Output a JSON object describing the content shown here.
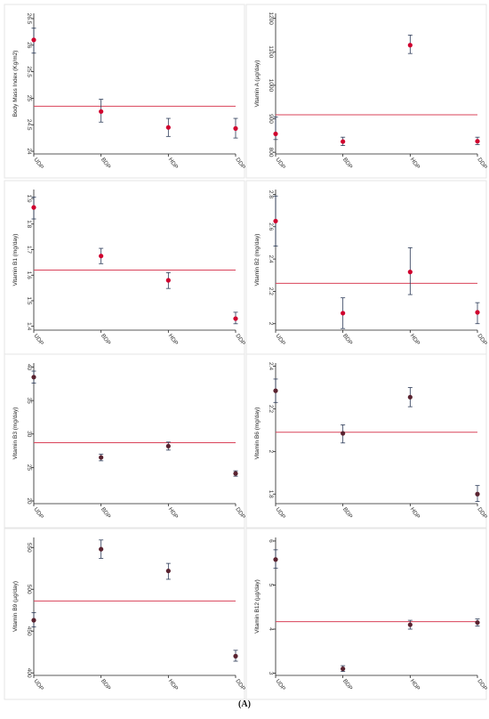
{
  "caption": "(A)",
  "colors": {
    "reference_line": "#d9435a",
    "marker": "#d0002e",
    "marker_dark": "#5a2330",
    "errorbar": "#2b3a57",
    "frame": "#e6e6e6",
    "axis": "#222222"
  },
  "chart_data": [
    {
      "type": "scatter",
      "ylabel": "Body Mass Index (Kg/m2)",
      "categories": [
        "UDP",
        "BDP",
        "HDP",
        "DDP"
      ],
      "values": [
        26.1,
        24.75,
        24.45,
        24.43
      ],
      "error_low": [
        25.85,
        24.55,
        24.28,
        24.25
      ],
      "error_high": [
        26.32,
        24.98,
        24.62,
        24.62
      ],
      "reference_line": 24.85,
      "yticks": [
        "24",
        "24.5",
        "25",
        "25.5",
        "26",
        "26.5"
      ],
      "ytick_values": [
        24,
        24.5,
        25,
        25.5,
        26,
        26.5
      ],
      "ylim": [
        23.95,
        26.6
      ],
      "marker": "bright"
    },
    {
      "type": "scatter",
      "ylabel": "Vitamin A (µg/day)",
      "categories": [
        "UDP",
        "BDP",
        "HDP",
        "DDP"
      ],
      "values": [
        855,
        832,
        1120,
        833
      ],
      "error_low": [
        838,
        820,
        1095,
        823
      ],
      "error_high": [
        905,
        845,
        1150,
        845
      ],
      "reference_line": 912,
      "yticks": [
        "800",
        "900",
        "1000",
        "1100",
        "1200"
      ],
      "ytick_values": [
        800,
        900,
        1000,
        1100,
        1200
      ],
      "ylim": [
        795,
        1215
      ],
      "marker": "bright"
    },
    {
      "type": "scatter",
      "ylabel": "Vitamin B1 (mg/day)",
      "categories": [
        "UDP",
        "BDP",
        "HDP",
        "DDP"
      ],
      "values": [
        1.865,
        1.675,
        1.58,
        1.43
      ],
      "error_low": [
        1.82,
        1.645,
        1.548,
        1.41
      ],
      "error_high": [
        1.905,
        1.705,
        1.61,
        1.455
      ],
      "reference_line": 1.62,
      "yticks": [
        "1.4",
        "1.5",
        "1.6",
        "1.7",
        "1.8",
        "1.9"
      ],
      "ytick_values": [
        1.4,
        1.5,
        1.6,
        1.7,
        1.8,
        1.9
      ],
      "ylim": [
        1.385,
        1.935
      ],
      "marker": "bright"
    },
    {
      "type": "scatter",
      "ylabel": "Vitamin B2 (mg/day)",
      "categories": [
        "UDP",
        "BDP",
        "HDP",
        "DDP"
      ],
      "values": [
        2.635,
        2.065,
        2.32,
        2.07
      ],
      "error_low": [
        2.48,
        1.97,
        2.18,
        2.0
      ],
      "error_high": [
        2.79,
        2.16,
        2.47,
        2.13
      ],
      "reference_line": 2.25,
      "yticks": [
        "2",
        "2.2",
        "2.4",
        "2.6",
        "2.8"
      ],
      "ytick_values": [
        2,
        2.2,
        2.4,
        2.6,
        2.8
      ],
      "ylim": [
        1.96,
        2.83
      ],
      "marker": "bright"
    },
    {
      "type": "scatter",
      "ylabel": "Vitamin B3 (mg/day)",
      "categories": [
        "UDP",
        "BDP",
        "HDP",
        "DDP"
      ],
      "values": [
        38.5,
        26.5,
        28.2,
        24.1
      ],
      "error_low": [
        37.6,
        26.0,
        27.6,
        23.7
      ],
      "error_high": [
        39.4,
        27.0,
        28.8,
        24.5
      ],
      "reference_line": 28.7,
      "yticks": [
        "20",
        "25",
        "30",
        "35",
        "40"
      ],
      "ytick_values": [
        20,
        25,
        30,
        35,
        40
      ],
      "ylim": [
        19.6,
        40.6
      ],
      "marker": "dark"
    },
    {
      "type": "scatter",
      "ylabel": "Vitamin B6 (mg/day)",
      "categories": [
        "UDP",
        "BDP",
        "HDP",
        "DDP"
      ],
      "values": [
        2.285,
        2.085,
        2.255,
        1.8
      ],
      "error_low": [
        2.23,
        2.04,
        2.21,
        1.765
      ],
      "error_high": [
        2.34,
        2.125,
        2.3,
        1.84
      ],
      "reference_line": 2.09,
      "yticks": [
        "1.8",
        "2",
        "2.2",
        "2.4"
      ],
      "ytick_values": [
        1.8,
        2.0,
        2.2,
        2.4
      ],
      "ylim": [
        1.755,
        2.415
      ],
      "marker": "dark"
    },
    {
      "type": "scatter",
      "ylabel": "Vitamin B9 (µg/day)",
      "categories": [
        "UDP",
        "BDP",
        "HDP",
        "DDP"
      ],
      "values": [
        463,
        548,
        522,
        420
      ],
      "error_low": [
        455,
        537,
        512,
        414
      ],
      "error_high": [
        472,
        559,
        531,
        427
      ],
      "reference_line": 486,
      "yticks": [
        "400",
        "450",
        "500",
        "550"
      ],
      "ytick_values": [
        400,
        450,
        500,
        550
      ],
      "ylim": [
        397,
        562
      ],
      "marker": "dark"
    },
    {
      "type": "scatter",
      "ylabel": "Vitamin B12 (µg/day)",
      "categories": [
        "UDP",
        "BDP",
        "HDP",
        "DDP"
      ],
      "values": [
        5.58,
        3.1,
        4.1,
        4.15
      ],
      "error_low": [
        5.38,
        3.04,
        4.0,
        4.07
      ],
      "error_high": [
        5.8,
        3.17,
        4.2,
        4.23
      ],
      "reference_line": 4.17,
      "yticks": [
        "3",
        "4",
        "5",
        "6"
      ],
      "ytick_values": [
        3,
        4,
        5,
        6
      ],
      "ylim": [
        2.95,
        6.08
      ],
      "marker": "dark"
    }
  ]
}
